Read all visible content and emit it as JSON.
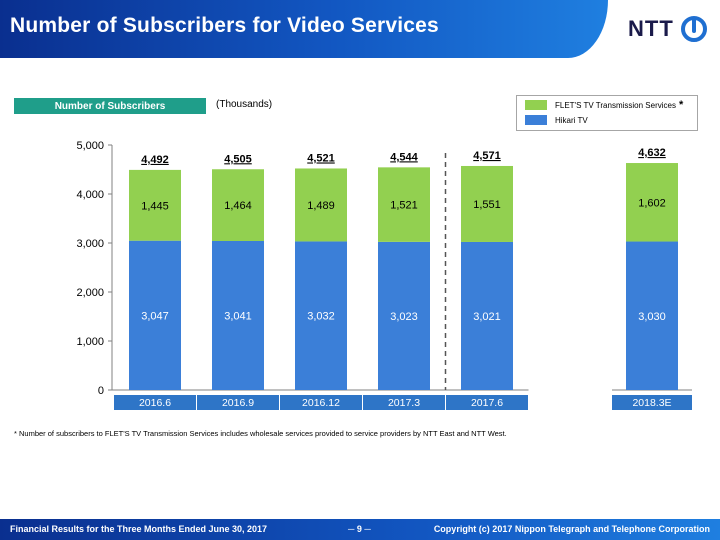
{
  "header": {
    "title": "Number of Subscribers for Video Services",
    "logo_text": "NTT"
  },
  "subheader": {
    "pill_label": "Number of Subscribers",
    "units": "(Thousands)"
  },
  "legend": {
    "items": [
      {
        "label": "FLET'S TV Transmission Services",
        "marker": "*",
        "color": "#92d050"
      },
      {
        "label": "Hikari TV",
        "color": "#3b7fd8"
      }
    ]
  },
  "chart_data": {
    "type": "bar",
    "stacked": true,
    "categories": [
      "2016.6",
      "2016.9",
      "2016.12",
      "2017.3",
      "2017.6",
      "2018.3E"
    ],
    "series": [
      {
        "name": "Hikari TV",
        "color": "#3b7fd8",
        "values": [
          3047,
          3041,
          3032,
          3023,
          3021,
          3030
        ]
      },
      {
        "name": "FLET'S TV Transmission Services",
        "color": "#92d050",
        "values": [
          1445,
          1464,
          1489,
          1521,
          1551,
          1602
        ]
      }
    ],
    "totals": [
      4492,
      4505,
      4521,
      4544,
      4571,
      4632
    ],
    "value_labels": {
      "series": [
        [
          "3,047",
          "3,041",
          "3,032",
          "3,023",
          "3,021",
          "3,030"
        ],
        [
          "1,445",
          "1,464",
          "1,489",
          "1,521",
          "1,551",
          "1,602"
        ]
      ],
      "totals": [
        "4,492",
        "4,505",
        "4,521",
        "4,544",
        "4,571",
        "4,632"
      ]
    },
    "ylim": [
      0,
      5000
    ],
    "yticks": [
      0,
      1000,
      2000,
      3000,
      4000,
      5000
    ],
    "ytick_labels": [
      "0",
      "1,000",
      "2,000",
      "3,000",
      "4,000",
      "5,000"
    ],
    "grid": false,
    "separator_after_index": 3,
    "gap_before_index": 5,
    "category_bar_color": "#2e75c7"
  },
  "footnote": "* Number of subscribers to FLET'S TV Transmission Services includes wholesale services provided to service providers by NTT East and NTT West.",
  "footer": {
    "left": "Financial Results for the Three Months Ended June 30, 2017",
    "page": "─ 9 ─",
    "right": "Copyright (c) 2017 Nippon Telegraph and Telephone Corporation"
  }
}
